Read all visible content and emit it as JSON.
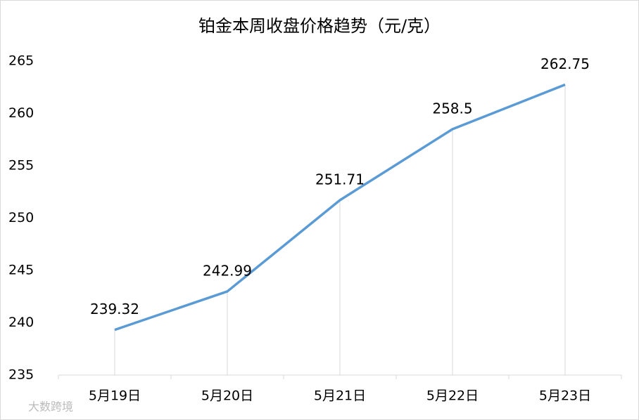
{
  "chart_data": {
    "type": "line",
    "title": "铂金本周收盘价格趋势（元/克）",
    "categories": [
      "5月19日",
      "5月20日",
      "5月21日",
      "5月22日",
      "5月23日"
    ],
    "values": [
      239.32,
      242.99,
      251.71,
      258.5,
      262.75
    ],
    "color": "#5b9bd5",
    "ylim": [
      235,
      265
    ],
    "yticks": [
      235,
      240,
      245,
      250,
      255,
      260,
      265
    ],
    "drop_lines": true,
    "watermark": "大数跨境"
  }
}
